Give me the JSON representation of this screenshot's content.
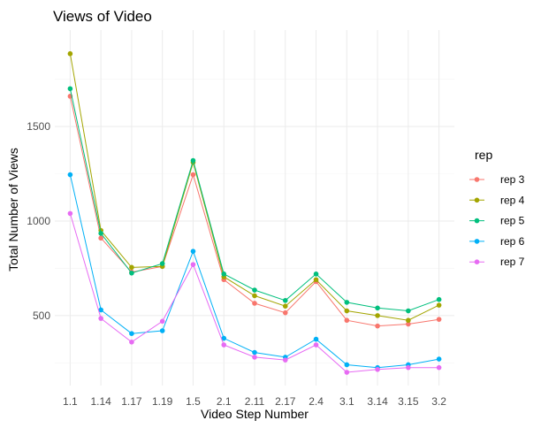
{
  "chart_data": {
    "type": "line",
    "title": "Views of Video",
    "xlabel": "Video Step Number",
    "ylabel": "Total Number of Views",
    "categories": [
      "1.1",
      "1.14",
      "1.17",
      "1.19",
      "1.5",
      "2.1",
      "2.11",
      "2.17",
      "2.4",
      "3.1",
      "3.14",
      "3.15",
      "3.2"
    ],
    "ylim": [
      130,
      2010
    ],
    "yticks": [
      500,
      1000,
      1500
    ],
    "grid": true,
    "legend": {
      "title": "rep",
      "position": "right"
    },
    "series": [
      {
        "name": "rep 3",
        "color": "#F8766D",
        "values": [
          1660,
          910,
          730,
          760,
          1245,
          690,
          565,
          515,
          680,
          475,
          445,
          455,
          480
        ]
      },
      {
        "name": "rep 4",
        "color": "#A3A500",
        "values": [
          1885,
          950,
          755,
          760,
          1310,
          705,
          605,
          550,
          690,
          525,
          500,
          475,
          555
        ]
      },
      {
        "name": "rep 5",
        "color": "#00BF7D",
        "values": [
          1700,
          935,
          725,
          775,
          1320,
          720,
          635,
          580,
          720,
          570,
          540,
          525,
          585
        ]
      },
      {
        "name": "rep 6",
        "color": "#00B0F6",
        "values": [
          1245,
          530,
          405,
          420,
          840,
          380,
          305,
          280,
          375,
          240,
          225,
          240,
          270
        ]
      },
      {
        "name": "rep 7",
        "color": "#E76BF3",
        "values": [
          1040,
          485,
          360,
          470,
          770,
          345,
          280,
          265,
          345,
          200,
          215,
          225,
          225
        ]
      }
    ]
  }
}
